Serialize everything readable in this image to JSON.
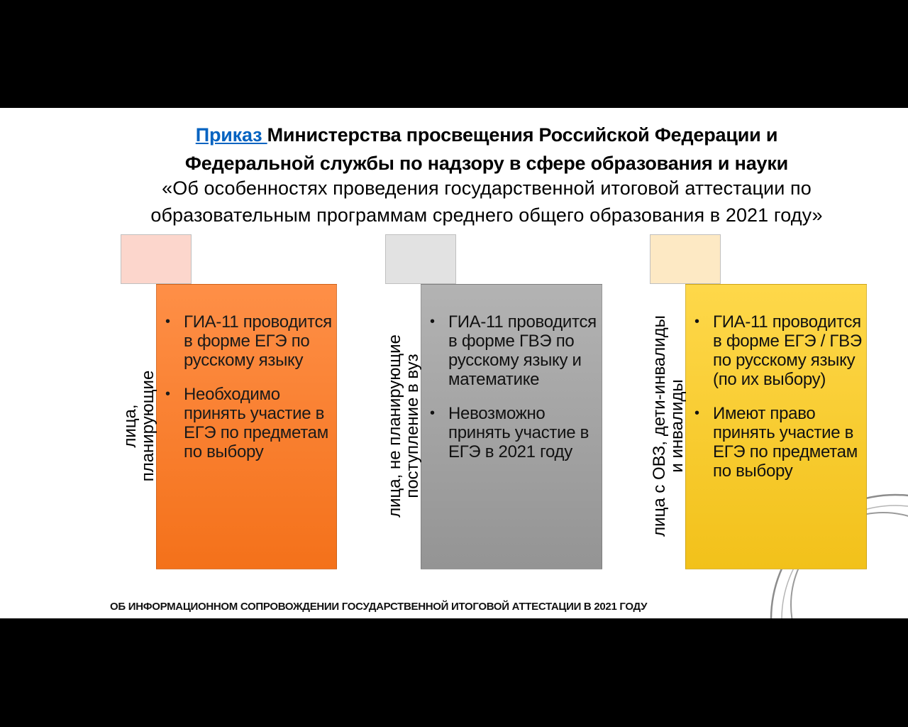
{
  "title": {
    "link_text": "Приказ ",
    "line1_rest": "Министерства просвещения Российской Федерации и",
    "line2": "Федеральной службы по надзору в сфере образования и науки"
  },
  "subtitle": {
    "line1": "«Об особенностях проведения государственной итоговой аттестации по",
    "line2": "образовательным программам среднего общего образования в 2021 году»"
  },
  "cards": [
    {
      "label_line1": "лица,",
      "label_line2": "планирующие",
      "items": [
        "ГИА-11 проводится в форме ЕГЭ по русскому языку",
        "Необходимо принять участие в ЕГЭ по предметам по выбору"
      ],
      "color": "#f7802f"
    },
    {
      "label_line1": "лица, не планирующие",
      "label_line2": "поступление в вуз",
      "items": [
        "ГИА-11 проводится в форме ГВЭ по русскому языку и математике",
        "Невозможно принять участие в ЕГЭ в 2021 году"
      ],
      "color": "#a6a6a6"
    },
    {
      "label_line1": "лица с ОВЗ, дети-инвалиды",
      "label_line2": "и инвалиды",
      "items": [
        "ГИА-11 проводится в форме ЕГЭ / ГВЭ по русскому языку (по их выбору)",
        "Имеют право принять участие в ЕГЭ по предметам по выбору"
      ],
      "color": "#fccc2e"
    }
  ],
  "bullet_symbol": "•",
  "footer": "ОБ ИНФОРМАЦИОННОМ СОПРОВОЖДЕНИИ ГОСУДАРСТВЕННОЙ ИТОГОВОЙ АТТЕСТАЦИИ В 2021 ГОДУ"
}
